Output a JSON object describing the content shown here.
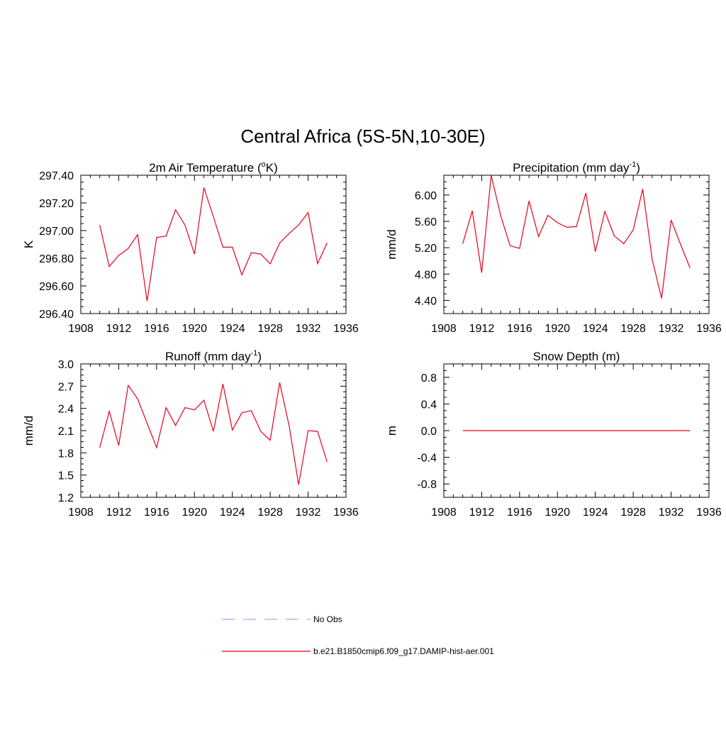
{
  "title": "Central Africa (5S-5N,10-30E)",
  "line_color": "#e8001a",
  "obs_color": "#a6a6ff",
  "legend": [
    {
      "label": "No Obs",
      "style": "dashed"
    },
    {
      "label": "b.e21.B1850cmip6.f09_g17.DAMIP-hist-aer.001",
      "style": "solid"
    }
  ],
  "chart_data": [
    {
      "type": "line",
      "title": "2m Air Temperature (",
      "title_sup": "o",
      "title_tail": "K)",
      "ylabel": "K",
      "xlim": [
        1908,
        1936
      ],
      "ylim": [
        296.4,
        297.4
      ],
      "xticks": [
        1908,
        1912,
        1916,
        1920,
        1924,
        1928,
        1932,
        1936
      ],
      "yticks": [
        296.4,
        296.6,
        296.8,
        297.0,
        297.2,
        297.4
      ],
      "ytick_labels": [
        "296.40",
        "296.60",
        "296.80",
        "297.00",
        "297.20",
        "297.40"
      ],
      "x": [
        1910,
        1911,
        1912,
        1913,
        1914,
        1915,
        1916,
        1917,
        1918,
        1919,
        1920,
        1921,
        1922,
        1923,
        1924,
        1925,
        1926,
        1927,
        1928,
        1929,
        1930,
        1931,
        1932,
        1933,
        1934
      ],
      "y": [
        297.04,
        296.74,
        296.82,
        296.87,
        296.97,
        296.49,
        296.95,
        296.96,
        297.15,
        297.04,
        296.83,
        297.31,
        297.1,
        296.88,
        296.88,
        296.68,
        296.84,
        296.83,
        296.76,
        296.91,
        296.98,
        297.04,
        297.13,
        296.76,
        296.91
      ]
    },
    {
      "type": "line",
      "title": "Precipitation (mm day",
      "title_sup": "-1",
      "title_tail": ")",
      "ylabel": "mm/d",
      "xlim": [
        1908,
        1936
      ],
      "ylim": [
        4.2,
        6.3
      ],
      "xticks": [
        1908,
        1912,
        1916,
        1920,
        1924,
        1928,
        1932,
        1936
      ],
      "yticks": [
        4.4,
        4.8,
        5.2,
        5.6,
        6.0
      ],
      "ytick_labels": [
        "4.40",
        "4.80",
        "5.20",
        "5.60",
        "6.00"
      ],
      "x": [
        1910,
        1911,
        1912,
        1913,
        1914,
        1915,
        1916,
        1917,
        1918,
        1919,
        1920,
        1921,
        1922,
        1923,
        1924,
        1925,
        1926,
        1927,
        1928,
        1929,
        1930,
        1931,
        1932,
        1933,
        1934
      ],
      "y": [
        5.26,
        5.76,
        4.82,
        6.3,
        5.69,
        5.23,
        5.19,
        5.91,
        5.37,
        5.69,
        5.58,
        5.51,
        5.52,
        6.03,
        5.14,
        5.75,
        5.38,
        5.26,
        5.47,
        6.09,
        5.02,
        4.43,
        5.62,
        5.25,
        4.89
      ]
    },
    {
      "type": "line",
      "title": "Runoff (mm day",
      "title_sup": "-1",
      "title_tail": ")",
      "ylabel": "mm/d",
      "xlim": [
        1908,
        1936
      ],
      "ylim": [
        1.2,
        3.0
      ],
      "xticks": [
        1908,
        1912,
        1916,
        1920,
        1924,
        1928,
        1932,
        1936
      ],
      "yticks": [
        1.2,
        1.5,
        1.8,
        2.1,
        2.4,
        2.7,
        3.0
      ],
      "ytick_labels": [
        "1.2",
        "1.5",
        "1.8",
        "2.1",
        "2.4",
        "2.7",
        "3.0"
      ],
      "x": [
        1910,
        1911,
        1912,
        1913,
        1914,
        1915,
        1916,
        1917,
        1918,
        1919,
        1920,
        1921,
        1922,
        1923,
        1924,
        1925,
        1926,
        1927,
        1928,
        1929,
        1930,
        1931,
        1932,
        1933,
        1934
      ],
      "y": [
        1.87,
        2.36,
        1.9,
        2.71,
        2.53,
        2.2,
        1.87,
        2.41,
        2.17,
        2.41,
        2.38,
        2.51,
        2.09,
        2.73,
        2.11,
        2.34,
        2.37,
        2.09,
        1.97,
        2.75,
        2.16,
        1.37,
        2.1,
        2.09,
        1.68
      ]
    },
    {
      "type": "line",
      "title": "Snow Depth (m)",
      "title_sup": "",
      "title_tail": "",
      "ylabel": "m",
      "xlim": [
        1908,
        1936
      ],
      "ylim": [
        -1.0,
        1.0
      ],
      "xticks": [
        1908,
        1912,
        1916,
        1920,
        1924,
        1928,
        1932,
        1936
      ],
      "yticks": [
        -0.8,
        -0.4,
        0.0,
        0.4,
        0.8
      ],
      "ytick_labels": [
        "-0.8",
        "-0.4",
        "0.0",
        "0.4",
        "0.8"
      ],
      "x": [
        1910,
        1934
      ],
      "y": [
        0.0,
        0.0
      ]
    }
  ]
}
